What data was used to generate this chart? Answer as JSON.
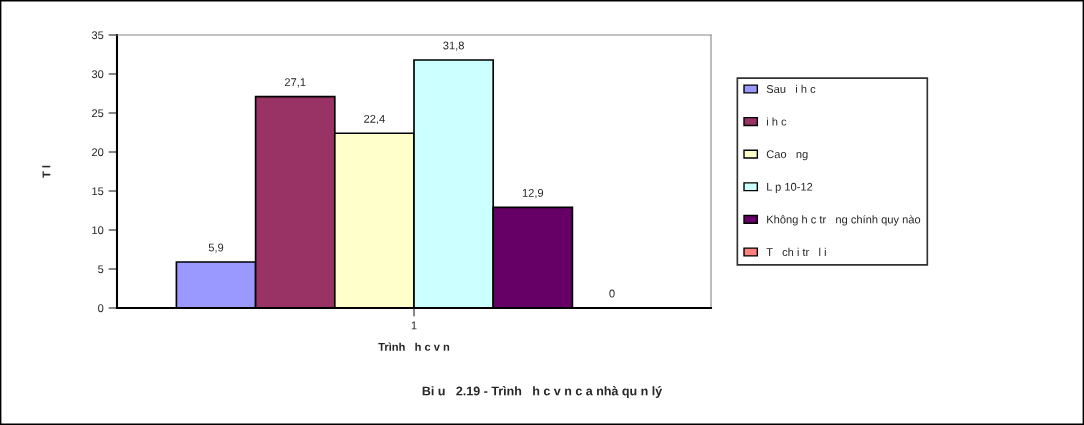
{
  "chart_data": {
    "type": "bar",
    "title": "Bi u   2.19 - Trình   h c v n c a nhà qu n lý",
    "xlabel": "Trình   h c v n",
    "ylabel": "T l",
    "categories": [
      "1"
    ],
    "series": [
      {
        "name": "Sau   i h c",
        "color": "#9999ff",
        "values": [
          5.9
        ],
        "value_labels": [
          "5,9"
        ]
      },
      {
        "name": "i h c",
        "color": "#993366",
        "values": [
          27.1
        ],
        "value_labels": [
          "27,1"
        ]
      },
      {
        "name": "Cao   ng",
        "color": "#ffffcc",
        "values": [
          22.4
        ],
        "value_labels": [
          "22,4"
        ]
      },
      {
        "name": "L p 10-12",
        "color": "#ccffff",
        "values": [
          31.8
        ],
        "value_labels": [
          "31,8"
        ]
      },
      {
        "name": "Không h c tr   ng chính quy nào",
        "color": "#660066",
        "values": [
          12.9
        ],
        "value_labels": [
          "12,9"
        ]
      },
      {
        "name": "T   ch i tr   l i",
        "color": "#ff8080",
        "values": [
          0
        ],
        "value_labels": [
          "0"
        ]
      }
    ],
    "ylim": [
      0,
      35
    ],
    "yticks": [
      0,
      5,
      10,
      15,
      20,
      25,
      30,
      35
    ],
    "legend": "right",
    "grid": false
  }
}
